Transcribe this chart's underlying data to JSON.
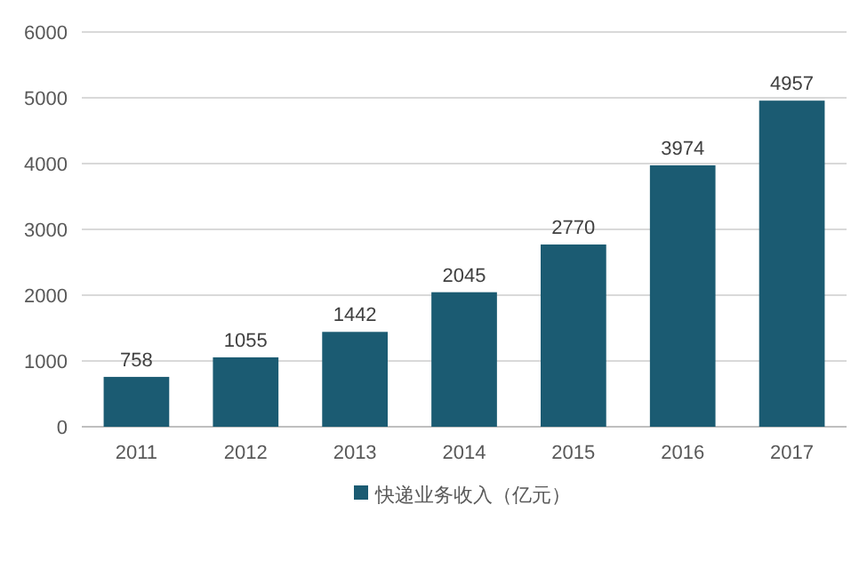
{
  "chart_data": {
    "type": "bar",
    "categories": [
      "2011",
      "2012",
      "2013",
      "2014",
      "2015",
      "2016",
      "2017"
    ],
    "series": [
      {
        "name": "快递业务收入（亿元）",
        "color": "#1b5b72",
        "values": [
          758,
          1055,
          1442,
          2045,
          2770,
          3974,
          4957
        ]
      }
    ],
    "ylim": [
      0,
      6000
    ],
    "yticks": [
      0,
      1000,
      2000,
      3000,
      4000,
      5000,
      6000
    ],
    "grid": "y",
    "legend": "bottom",
    "data_labels": true
  }
}
